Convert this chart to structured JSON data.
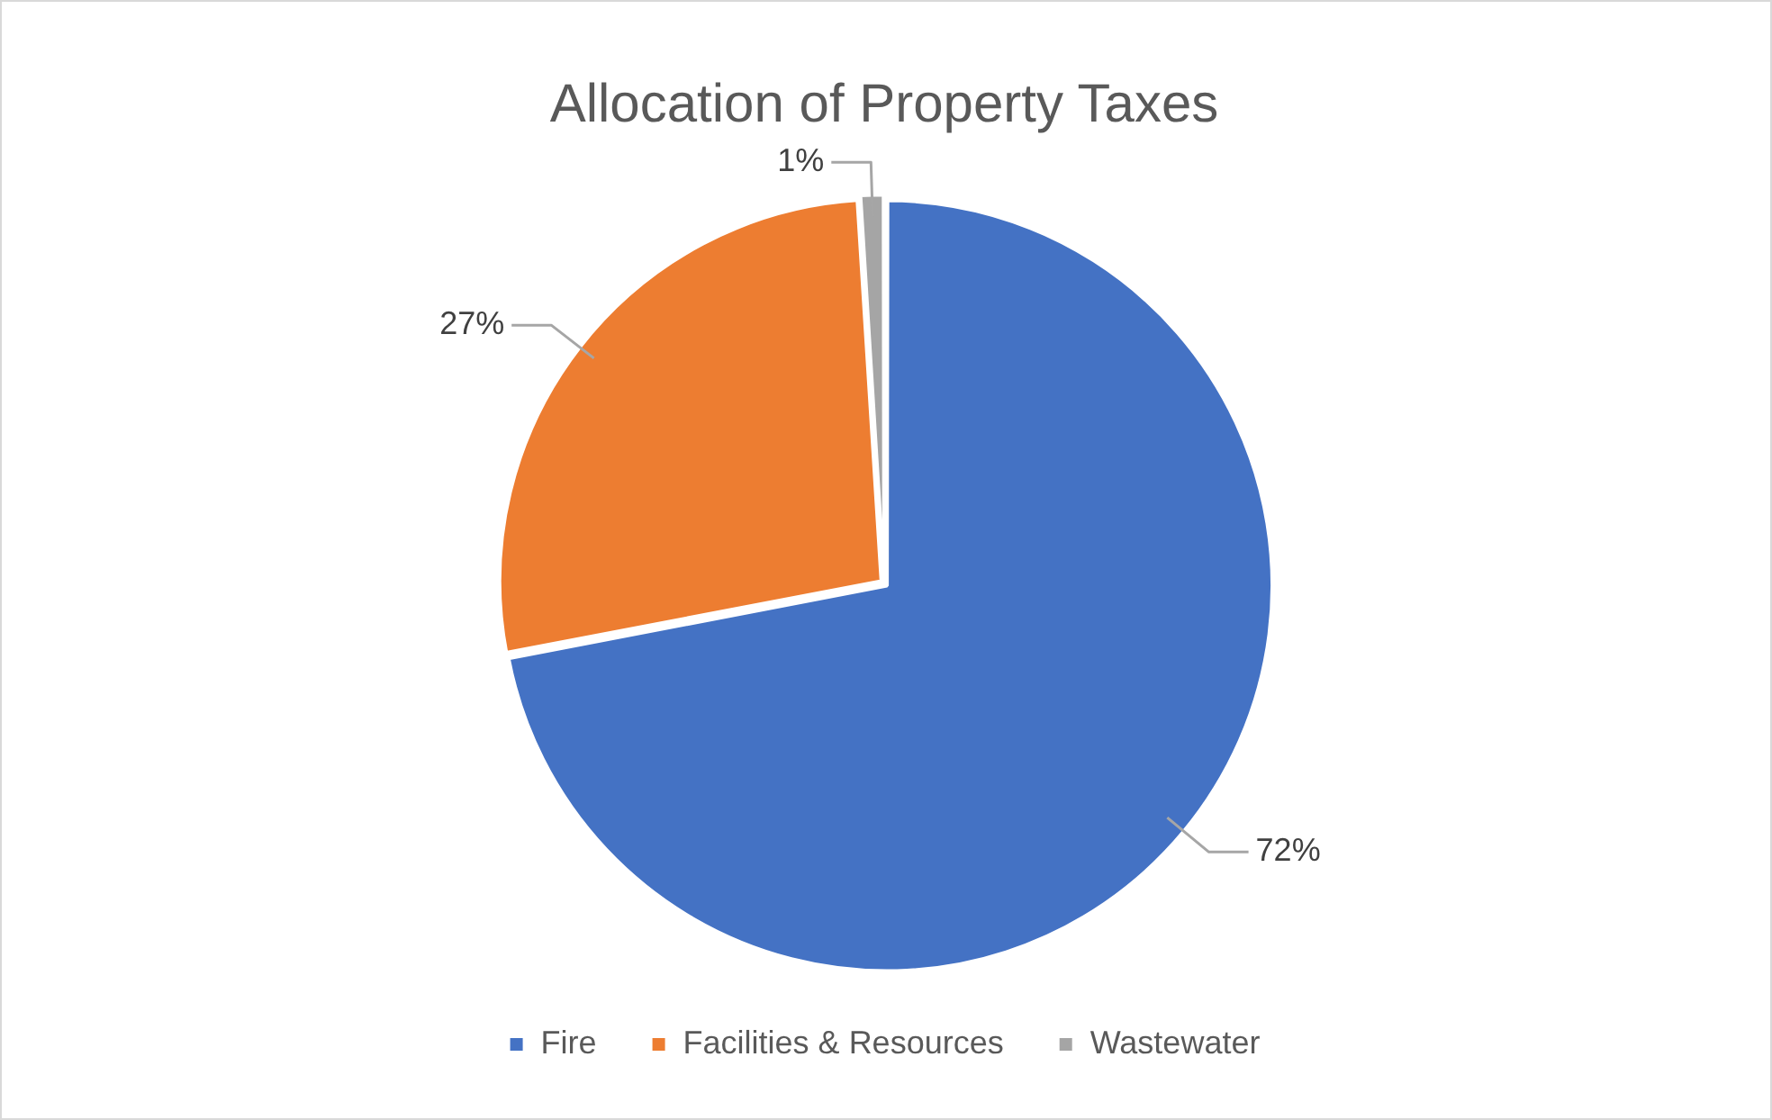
{
  "chart_data": {
    "type": "pie",
    "title": "Allocation of Property Taxes",
    "categories": [
      "Fire",
      "Facilities & Resources",
      "Wastewater"
    ],
    "values": [
      72,
      27,
      1
    ],
    "colors": [
      "#4472c4",
      "#ed7d31",
      "#a5a5a5"
    ],
    "value_labels": [
      "72%",
      "27%",
      "1%"
    ],
    "legend": "bottom"
  }
}
